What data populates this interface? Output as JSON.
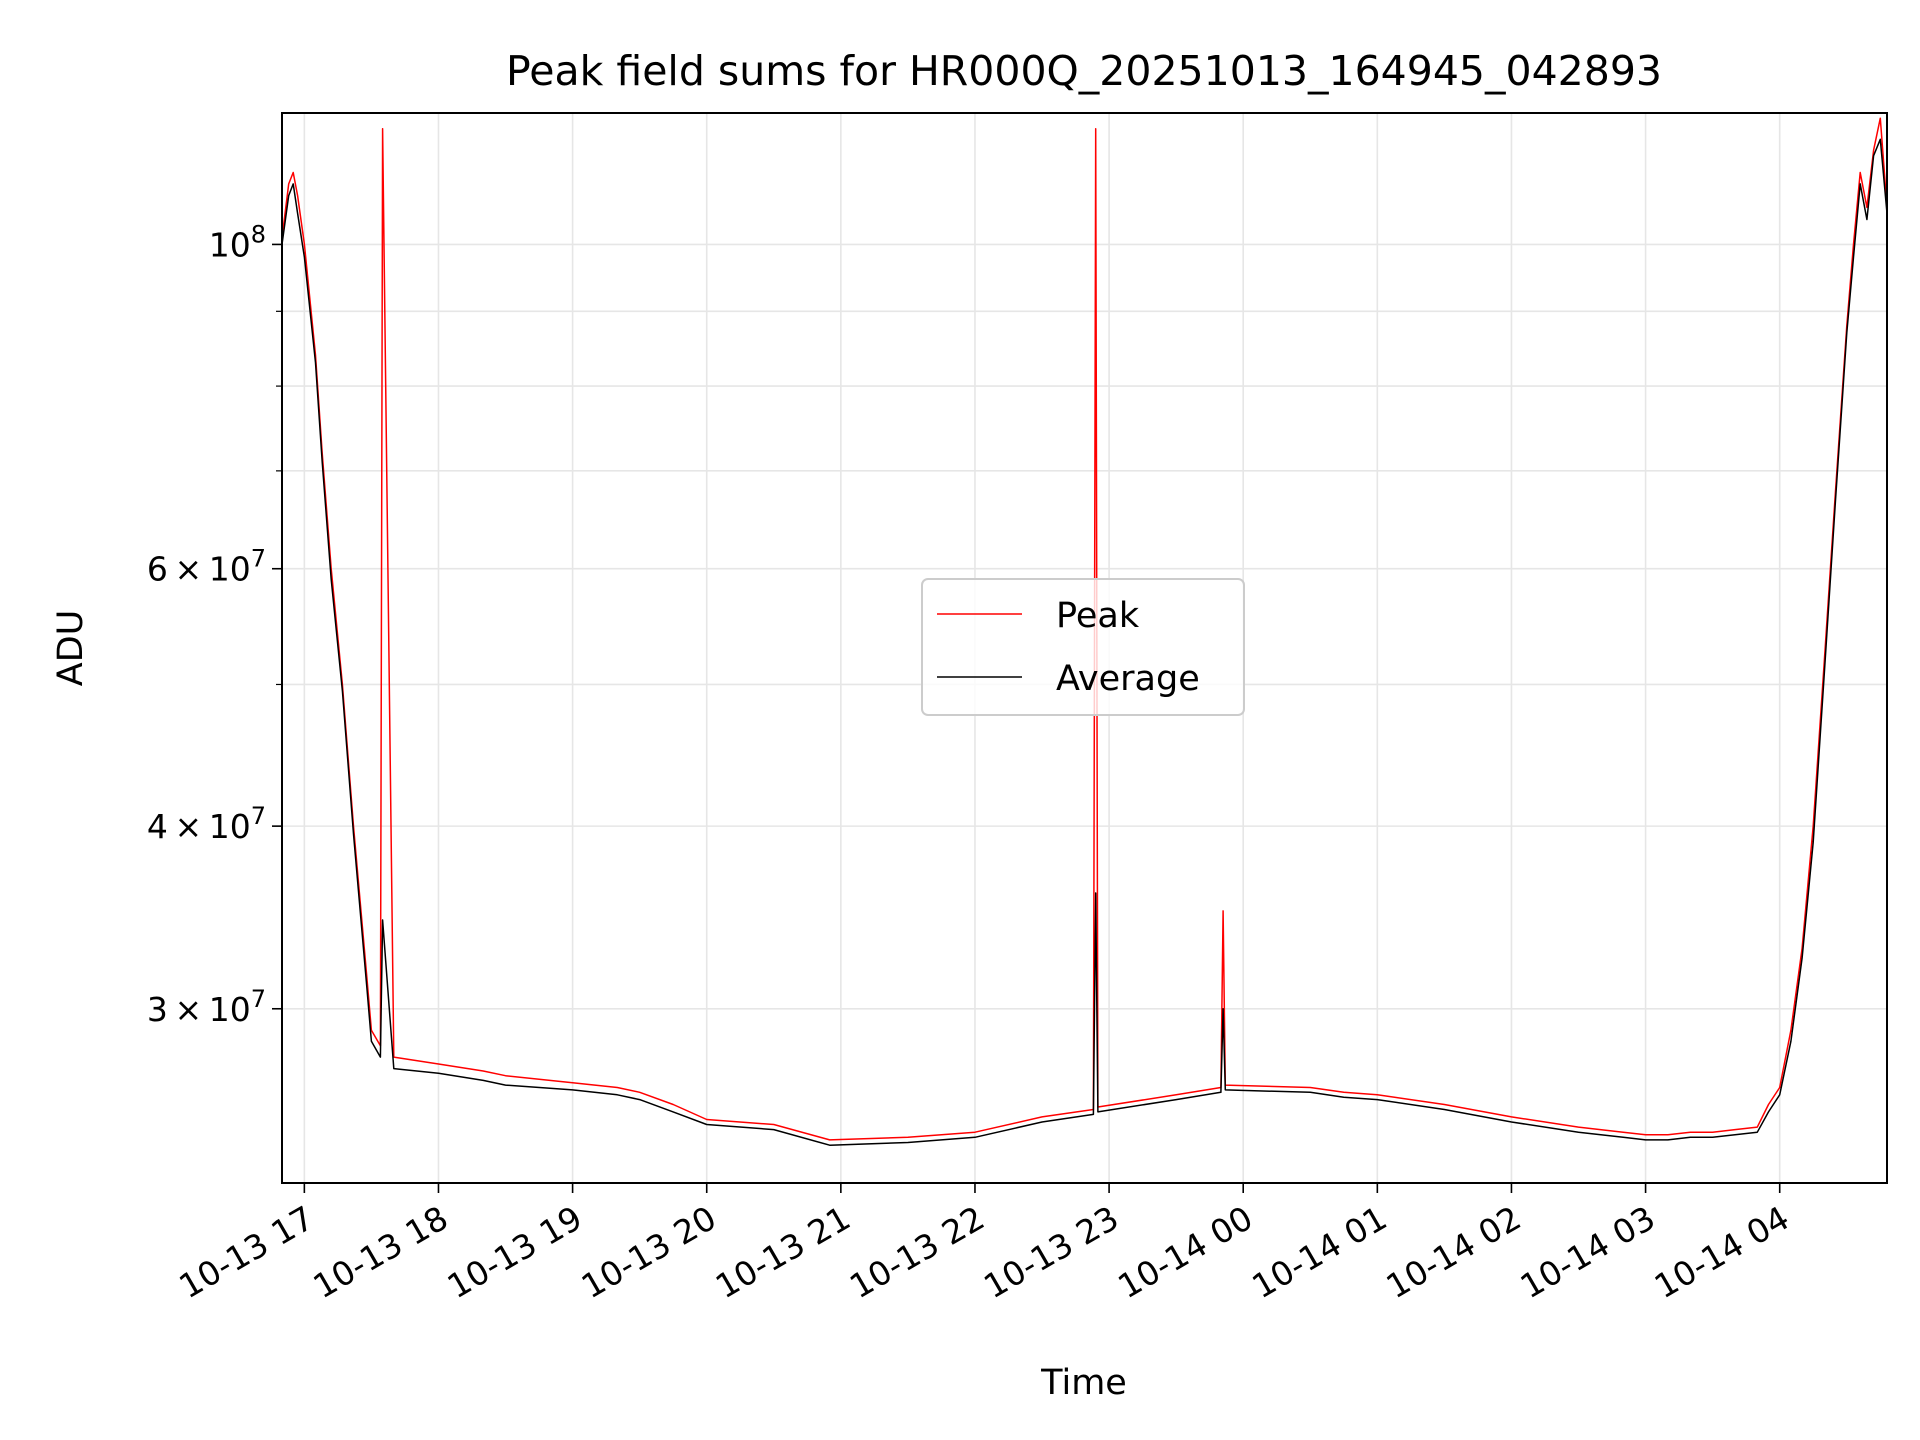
{
  "chart_data": {
    "type": "line",
    "title": "Peak field sums for HR000Q_20251013_164945_042893",
    "xlabel": "Time",
    "ylabel": "ADU",
    "y_scale": "log",
    "xlim": [
      "2025-10-13 16:50",
      "2025-10-14 04:48"
    ],
    "ylim": [
      22800000,
      123000000
    ],
    "grid": true,
    "legend_position": "center",
    "x_tick_labels": [
      "10-13 17",
      "10-13 18",
      "10-13 19",
      "10-13 20",
      "10-13 21",
      "10-13 22",
      "10-13 23",
      "10-14 00",
      "10-14 01",
      "10-14 02",
      "10-14 03",
      "10-14 04"
    ],
    "x_ticks": [
      "2025-10-13 17:00",
      "2025-10-13 18:00",
      "2025-10-13 19:00",
      "2025-10-13 20:00",
      "2025-10-13 21:00",
      "2025-10-13 22:00",
      "2025-10-13 23:00",
      "2025-10-14 00:00",
      "2025-10-14 01:00",
      "2025-10-14 02:00",
      "2025-10-14 03:00",
      "2025-10-14 04:00"
    ],
    "y_ticks": [
      {
        "value": 100000000,
        "mantissa": "",
        "exponent": "8"
      },
      {
        "value": 60000000,
        "mantissa": "6",
        "exponent": "7"
      },
      {
        "value": 40000000,
        "mantissa": "4",
        "exponent": "7"
      },
      {
        "value": 30000000,
        "mantissa": "3",
        "exponent": "7"
      }
    ],
    "y_minor_ticks": [
      50000000,
      70000000,
      80000000,
      90000000
    ],
    "series": [
      {
        "name": "Peak",
        "color": "#ff0000",
        "x": [
          "2025-10-13 16:50",
          "2025-10-13 16:53",
          "2025-10-13 16:55",
          "2025-10-13 16:57",
          "2025-10-13 17:00",
          "2025-10-13 17:05",
          "2025-10-13 17:08",
          "2025-10-13 17:12",
          "2025-10-13 17:17",
          "2025-10-13 17:22",
          "2025-10-13 17:28",
          "2025-10-13 17:30",
          "2025-10-13 17:34",
          "2025-10-13 17:35",
          "2025-10-13 17:40",
          "2025-10-13 18:00",
          "2025-10-13 18:20",
          "2025-10-13 18:30",
          "2025-10-13 19:00",
          "2025-10-13 19:20",
          "2025-10-13 19:30",
          "2025-10-13 19:45",
          "2025-10-13 20:00",
          "2025-10-13 20:30",
          "2025-10-13 20:55",
          "2025-10-13 21:30",
          "2025-10-13 22:00",
          "2025-10-13 22:30",
          "2025-10-13 22:53",
          "2025-10-13 22:54",
          "2025-10-13 22:55",
          "2025-10-13 23:30",
          "2025-10-13 23:50",
          "2025-10-13 23:51",
          "2025-10-13 23:52",
          "2025-10-14 00:30",
          "2025-10-14 00:45",
          "2025-10-14 01:00",
          "2025-10-14 01:30",
          "2025-10-14 02:00",
          "2025-10-14 02:30",
          "2025-10-14 02:50",
          "2025-10-14 03:00",
          "2025-10-14 03:10",
          "2025-10-14 03:20",
          "2025-10-14 03:30",
          "2025-10-14 03:40",
          "2025-10-14 03:50",
          "2025-10-14 03:55",
          "2025-10-14 04:00",
          "2025-10-14 04:05",
          "2025-10-14 04:10",
          "2025-10-14 04:15",
          "2025-10-14 04:20",
          "2025-10-14 04:25",
          "2025-10-14 04:30",
          "2025-10-14 04:33",
          "2025-10-14 04:36",
          "2025-10-14 04:39",
          "2025-10-14 04:42",
          "2025-10-14 04:45",
          "2025-10-14 04:48"
        ],
        "y": [
          101000000,
          110000000,
          112000000,
          108000000,
          100000000,
          84000000,
          72000000,
          60000000,
          50000000,
          40000000,
          31500000,
          29000000,
          28300000,
          120000000,
          27800000,
          27500000,
          27200000,
          27000000,
          26700000,
          26500000,
          26300000,
          25800000,
          25200000,
          25000000,
          24400000,
          24500000,
          24700000,
          25300000,
          25600000,
          120000000,
          25700000,
          26200000,
          26500000,
          35000000,
          26600000,
          26500000,
          26300000,
          26200000,
          25800000,
          25300000,
          24900000,
          24700000,
          24600000,
          24600000,
          24700000,
          24700000,
          24800000,
          24900000,
          25800000,
          26500000,
          29000000,
          33000000,
          40000000,
          52000000,
          68000000,
          88000000,
          100000000,
          112000000,
          106000000,
          116000000,
          122000000,
          106000000
        ]
      },
      {
        "name": "Average",
        "color": "#000000",
        "x": [
          "2025-10-13 16:50",
          "2025-10-13 16:53",
          "2025-10-13 16:55",
          "2025-10-13 16:57",
          "2025-10-13 17:00",
          "2025-10-13 17:05",
          "2025-10-13 17:08",
          "2025-10-13 17:12",
          "2025-10-13 17:17",
          "2025-10-13 17:22",
          "2025-10-13 17:28",
          "2025-10-13 17:30",
          "2025-10-13 17:34",
          "2025-10-13 17:35",
          "2025-10-13 17:40",
          "2025-10-13 18:00",
          "2025-10-13 18:20",
          "2025-10-13 18:30",
          "2025-10-13 19:00",
          "2025-10-13 19:20",
          "2025-10-13 19:30",
          "2025-10-13 19:45",
          "2025-10-13 20:00",
          "2025-10-13 20:30",
          "2025-10-13 20:55",
          "2025-10-13 21:30",
          "2025-10-13 22:00",
          "2025-10-13 22:30",
          "2025-10-13 22:53",
          "2025-10-13 22:54",
          "2025-10-13 22:55",
          "2025-10-13 23:30",
          "2025-10-13 23:50",
          "2025-10-13 23:51",
          "2025-10-13 23:52",
          "2025-10-14 00:30",
          "2025-10-14 00:45",
          "2025-10-14 01:00",
          "2025-10-14 01:30",
          "2025-10-14 02:00",
          "2025-10-14 02:30",
          "2025-10-14 02:50",
          "2025-10-14 03:00",
          "2025-10-14 03:10",
          "2025-10-14 03:20",
          "2025-10-14 03:30",
          "2025-10-14 03:40",
          "2025-10-14 03:50",
          "2025-10-14 03:55",
          "2025-10-14 04:00",
          "2025-10-14 04:05",
          "2025-10-14 04:10",
          "2025-10-14 04:15",
          "2025-10-14 04:20",
          "2025-10-14 04:25",
          "2025-10-14 04:30",
          "2025-10-14 04:33",
          "2025-10-14 04:36",
          "2025-10-14 04:39",
          "2025-10-14 04:42",
          "2025-10-14 04:45",
          "2025-10-14 04:48"
        ],
        "y": [
          100000000,
          108000000,
          110000000,
          105000000,
          98000000,
          83000000,
          71000000,
          59000000,
          49500000,
          39500000,
          31000000,
          28500000,
          27800000,
          34500000,
          27300000,
          27100000,
          26800000,
          26600000,
          26400000,
          26200000,
          26000000,
          25500000,
          25000000,
          24800000,
          24200000,
          24300000,
          24500000,
          25100000,
          25400000,
          36000000,
          25500000,
          26000000,
          26300000,
          30000000,
          26400000,
          26300000,
          26100000,
          26000000,
          25600000,
          25100000,
          24700000,
          24500000,
          24400000,
          24400000,
          24500000,
          24500000,
          24600000,
          24700000,
          25500000,
          26200000,
          28500000,
          32500000,
          39000000,
          51000000,
          67000000,
          87000000,
          98000000,
          110000000,
          104000000,
          115000000,
          118000000,
          105000000
        ]
      }
    ]
  }
}
